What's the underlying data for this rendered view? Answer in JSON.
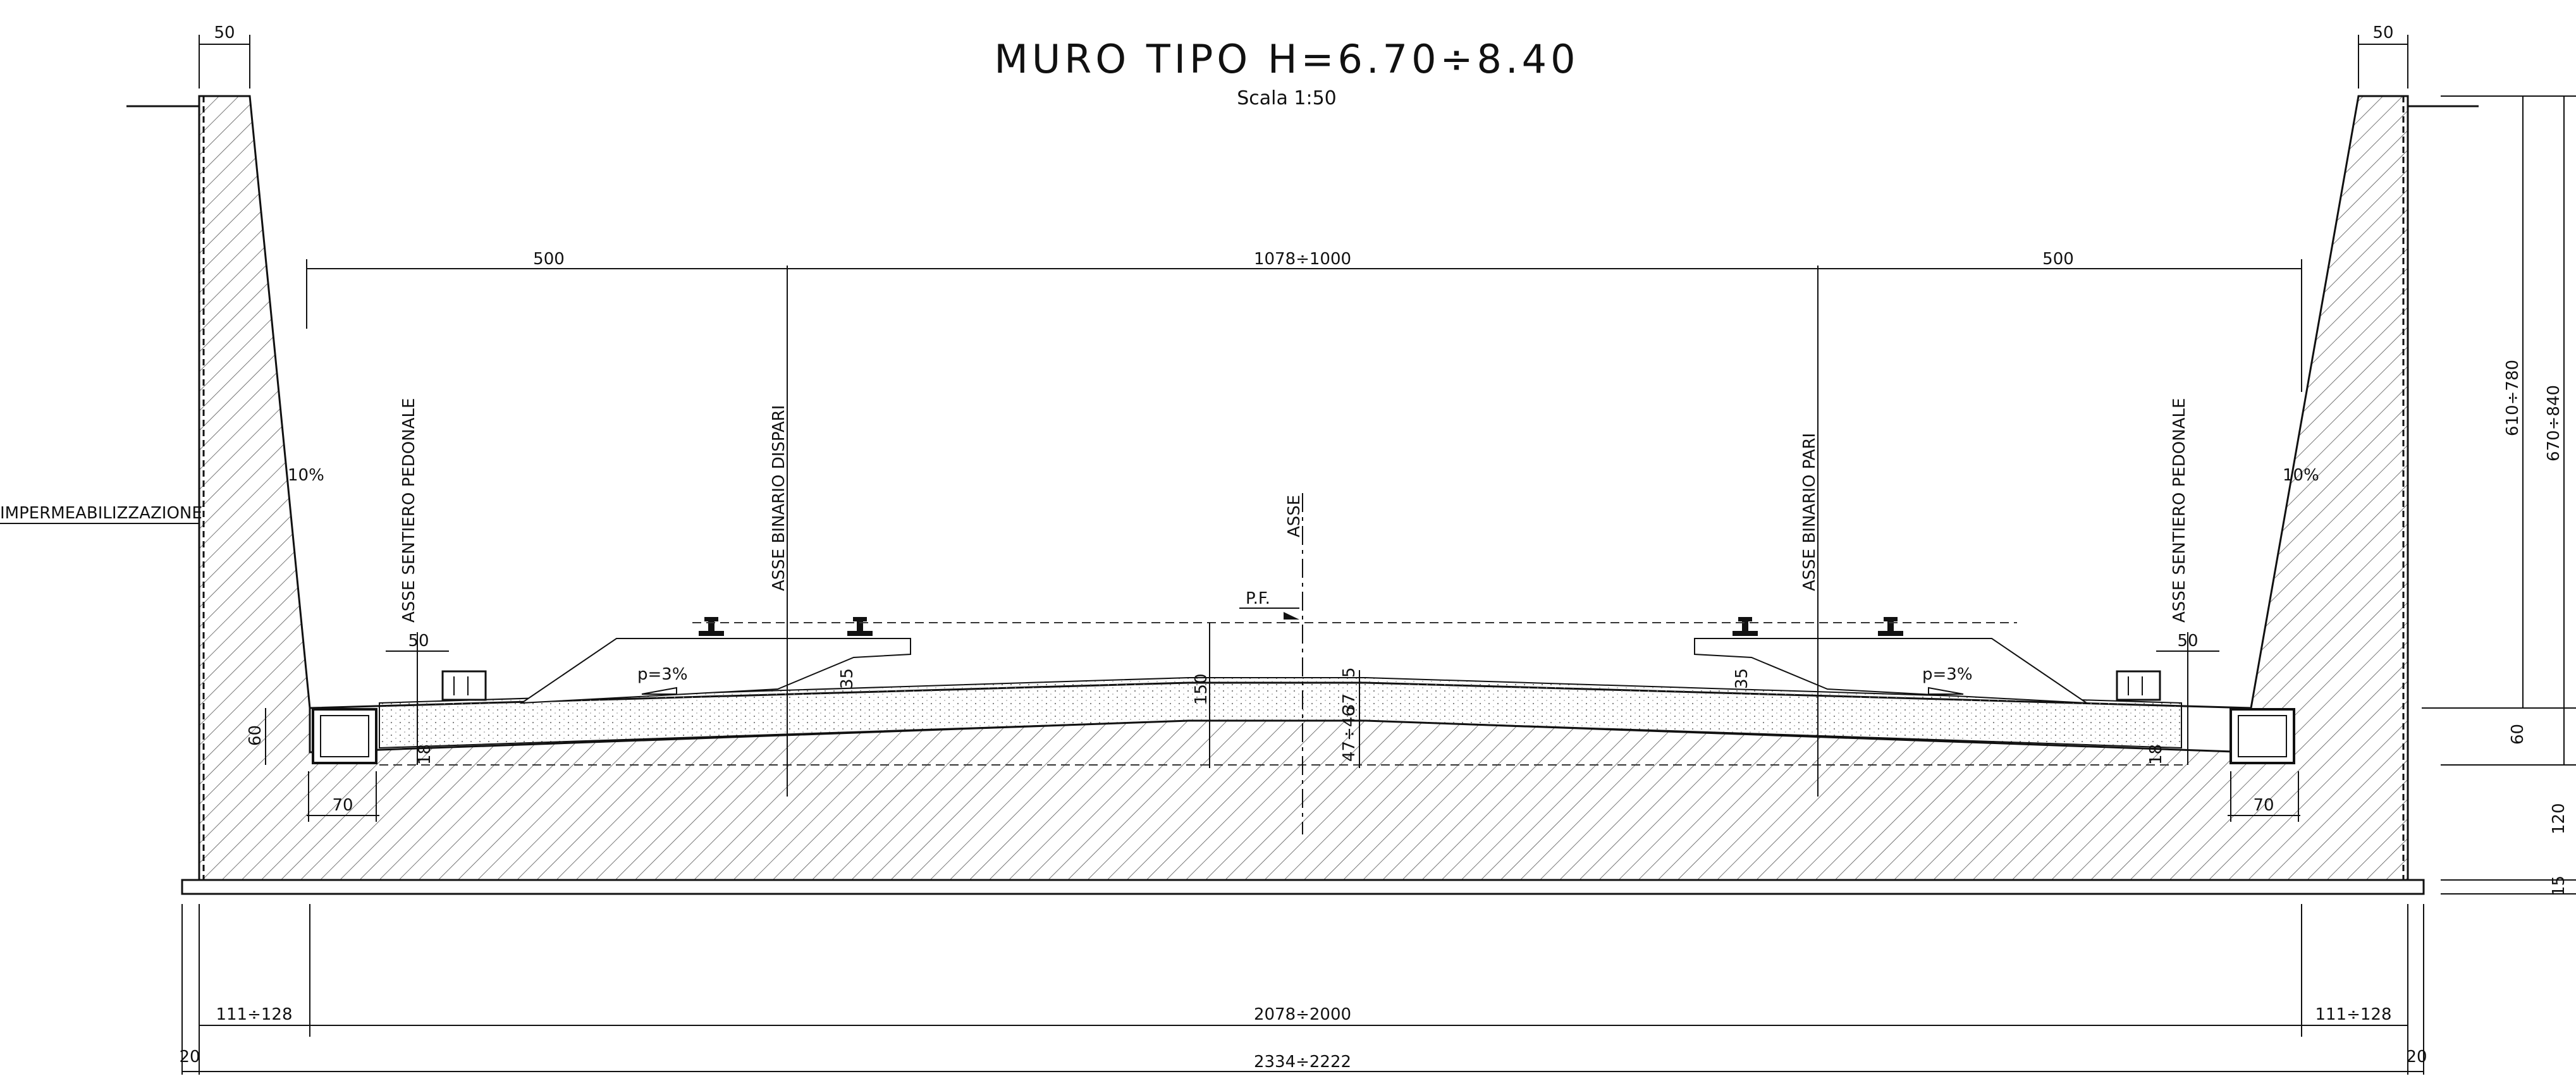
{
  "title": "MURO TIPO H=6.70÷8.40",
  "scale": "Scala 1:50",
  "labels": {
    "impermeabilizzazione": "IMPERMEABILIZZAZIONE",
    "asse_sentiero_sx": "ASSE SENTIERO PEDONALE",
    "asse_binario_dispari": "ASSE BINARIO DISPARI",
    "asse": "ASSE",
    "asse_binario_pari": "ASSE BINARIO PARI",
    "asse_sentiero_dx": "ASSE SENTIERO PEDONALE",
    "pf": "P.F.",
    "slope_wall_left": "10%",
    "slope_wall_right": "10%",
    "slope_platform_left": "p=3%",
    "slope_platform_right": "p=3%"
  },
  "dimensions": {
    "wall_top_left": "50",
    "wall_top_right": "50",
    "span_left": "500",
    "span_center": "1078÷1000",
    "span_right": "500",
    "walkway_left": "50",
    "walkway_right": "50",
    "ballast_left": "35",
    "ballast_right": "35",
    "depth_150": "150",
    "depth_5": "5",
    "depth_37": "37",
    "depth_47_46": "47÷46",
    "drain_height": "60",
    "drain_left_18": "18",
    "drain_right_18": "18",
    "drain_width_left": "70",
    "drain_width_right": "70",
    "height_610_780": "610÷780",
    "height_670_840": "670÷840",
    "height_60": "60",
    "height_120": "120",
    "height_15": "15",
    "base_left": "111÷128",
    "base_center": "2078÷2000",
    "base_right": "111÷128",
    "base_total": "2334÷2222",
    "edge_left": "20",
    "edge_right": "20"
  }
}
